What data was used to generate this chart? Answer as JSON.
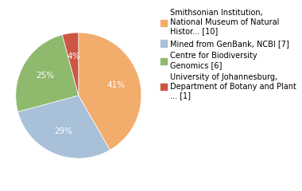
{
  "labels": [
    "Smithsonian Institution,\nNational Museum of Natural\nHistor... [10]",
    "Mined from GenBank, NCBI [7]",
    "Centre for Biodiversity\nGenomics [6]",
    "University of Johannesburg,\nDepartment of Botany and Plant\n... [1]"
  ],
  "values": [
    10,
    7,
    6,
    1
  ],
  "colors": [
    "#f2ac6b",
    "#a8c0d8",
    "#8fba6e",
    "#cc5544"
  ],
  "pct_labels": [
    "41%",
    "29%",
    "25%",
    "4%"
  ],
  "text_color": "#ffffff",
  "font_size": 7.5,
  "legend_font_size": 7.0
}
